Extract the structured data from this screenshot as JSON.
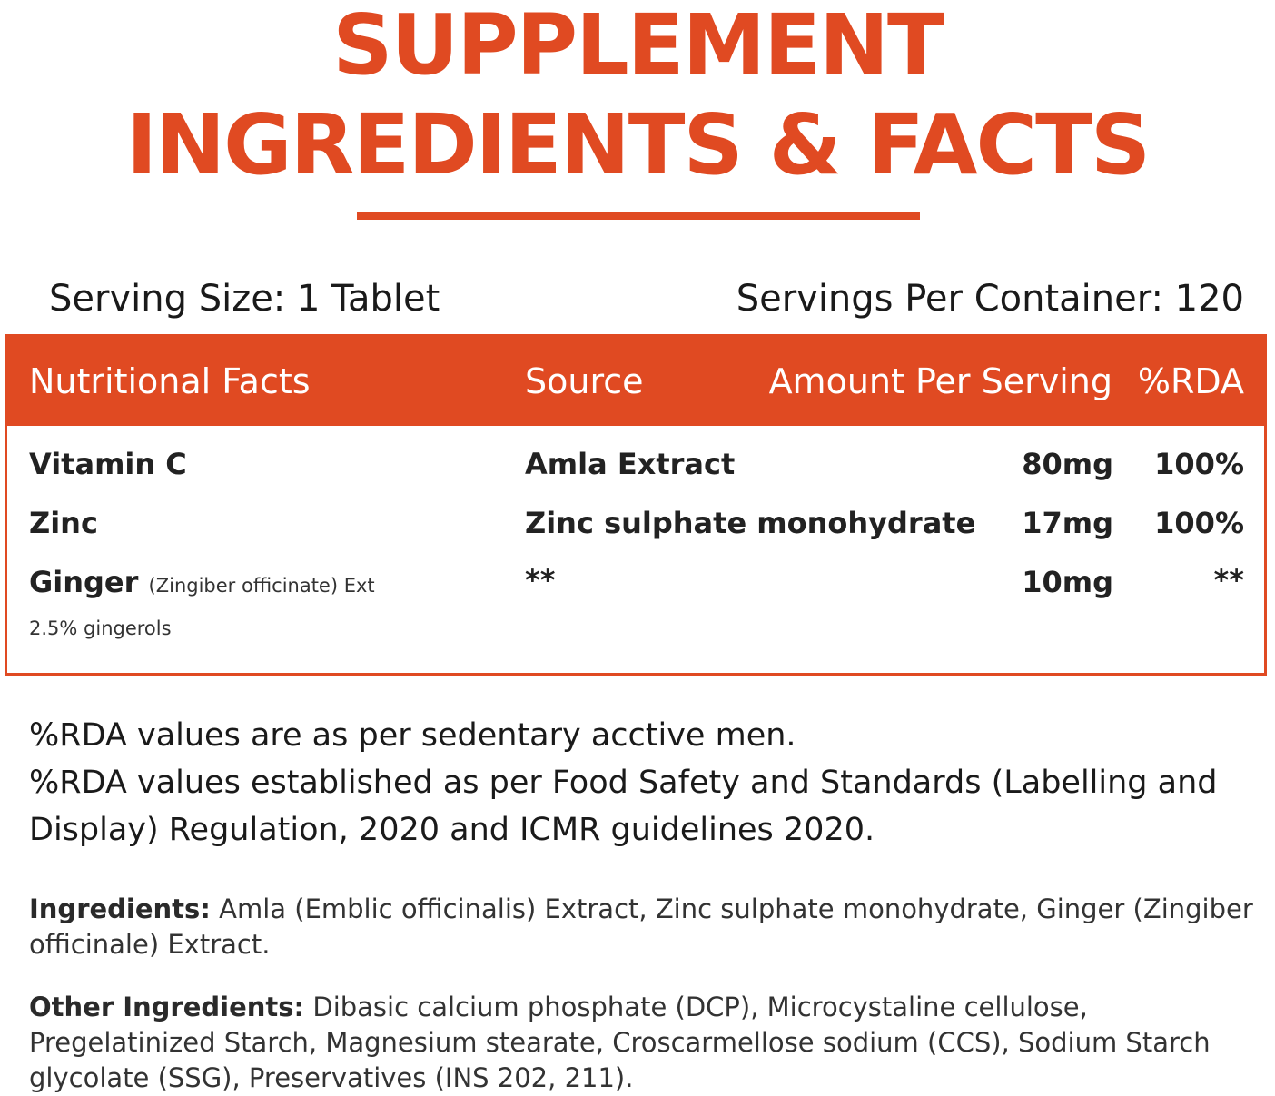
{
  "heading": {
    "line1": "SUPPLEMENT",
    "line2": "INGREDIENTS & FACTS"
  },
  "serving": {
    "size": "Serving Size: 1 Tablet",
    "per_container": "Servings Per Container: 120"
  },
  "facts_table": {
    "columns": [
      "Nutritional Facts",
      "Source",
      "Amount Per Serving",
      "%RDA"
    ],
    "rows": [
      {
        "name": "Vitamin C",
        "note": "",
        "source": "Amla Extract",
        "amount": "80mg",
        "rda": "100%"
      },
      {
        "name": "Zinc",
        "note": "",
        "source": "Zinc sulphate monohydrate",
        "amount": "17mg",
        "rda": "100%"
      },
      {
        "name": "Ginger",
        "note": "(Zingiber officinate) Ext",
        "source": "**",
        "amount": "10mg",
        "rda": "**"
      }
    ],
    "sub_note": "2.5% gingerols"
  },
  "rda_notes": [
    "%RDA values are as per sedentary acctive men.",
    "%RDA values established as per Food Safety and Standards (Labelling and Display) Regulation, 2020 and ICMR guidelines 2020."
  ],
  "ingredients": {
    "label": "Ingredients:",
    "text": " Amla (Emblic officinalis) Extract, Zinc sulphate monohydrate, Ginger (Zingiber officinale) Extract."
  },
  "other_ingredients": {
    "label": "Other Ingredients:",
    "text": " Dibasic calcium phosphate (DCP), Microcystaline cellulose, Pregelatinized Starch, Magnesium stearate, Croscarmellose sodium (CCS), Sodium Starch glycolate (SSG), Preservatives (INS 202, 211)."
  },
  "colors": {
    "accent": "#e04a22",
    "text": "#1e1e1e"
  }
}
